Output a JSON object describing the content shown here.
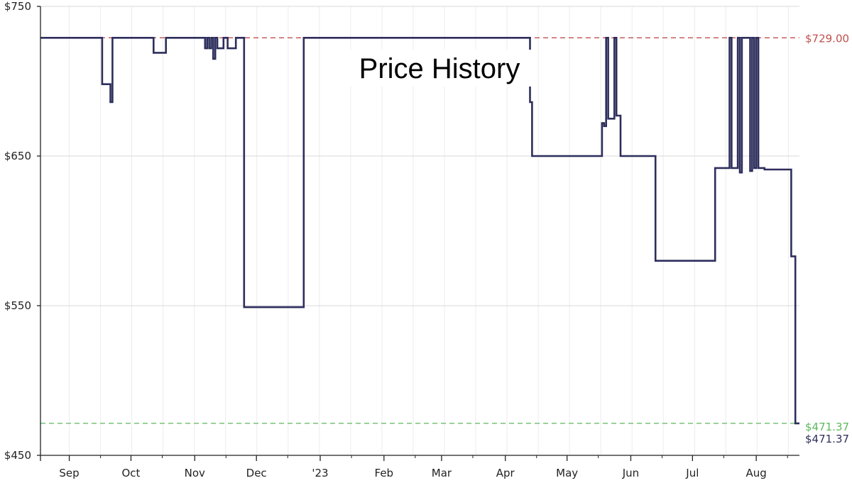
{
  "chart_data": {
    "type": "line",
    "title": "Price History",
    "xlabel": "",
    "ylabel": "",
    "ylim": [
      450,
      750
    ],
    "y_ticks": [
      "$450",
      "$550",
      "$650",
      "$750"
    ],
    "y_tick_values": [
      450,
      550,
      650,
      750
    ],
    "x_start": "2022-08-18",
    "x_end": "2023-08-22",
    "x_tick_labels": [
      "Sep",
      "Oct",
      "Nov",
      "Dec",
      "'23",
      "Feb",
      "Mar",
      "Apr",
      "May",
      "Jun",
      "Jul",
      "Aug"
    ],
    "x_tick_dates": [
      "2022-09-01",
      "2022-10-01",
      "2022-11-01",
      "2022-12-01",
      "2023-01-01",
      "2023-02-01",
      "2023-03-01",
      "2023-04-01",
      "2023-05-01",
      "2023-06-01",
      "2023-07-01",
      "2023-08-01"
    ],
    "grid": true,
    "highest_price": {
      "label": "$729.00",
      "value": 729.0,
      "color": "#c0504d"
    },
    "lowest_price": {
      "label": "$471.37",
      "value": 471.37,
      "color": "#5cb85c"
    },
    "current_price": {
      "label": "$471.37",
      "value": 471.37,
      "color": "#2d2e5c"
    },
    "series": [
      {
        "color": "#2d2e5c",
        "step": true,
        "points": [
          [
            "2022-08-18",
            729
          ],
          [
            "2022-09-17",
            729
          ],
          [
            "2022-09-17",
            698
          ],
          [
            "2022-09-21",
            698
          ],
          [
            "2022-09-21",
            686
          ],
          [
            "2022-09-22",
            686
          ],
          [
            "2022-09-22",
            729
          ],
          [
            "2022-10-12",
            729
          ],
          [
            "2022-10-12",
            719
          ],
          [
            "2022-10-18",
            719
          ],
          [
            "2022-10-18",
            729
          ],
          [
            "2022-11-06",
            729
          ],
          [
            "2022-11-06",
            722
          ],
          [
            "2022-11-07",
            722
          ],
          [
            "2022-11-07",
            729
          ],
          [
            "2022-11-08",
            729
          ],
          [
            "2022-11-08",
            722
          ],
          [
            "2022-11-09",
            722
          ],
          [
            "2022-11-09",
            729
          ],
          [
            "2022-11-10",
            729
          ],
          [
            "2022-11-10",
            715
          ],
          [
            "2022-11-11",
            715
          ],
          [
            "2022-11-11",
            729
          ],
          [
            "2022-11-12",
            729
          ],
          [
            "2022-11-12",
            722
          ],
          [
            "2022-11-15",
            722
          ],
          [
            "2022-11-15",
            729
          ],
          [
            "2022-11-17",
            729
          ],
          [
            "2022-11-17",
            722
          ],
          [
            "2022-11-21",
            722
          ],
          [
            "2022-11-21",
            729
          ],
          [
            "2022-11-25",
            729
          ],
          [
            "2022-11-25",
            549
          ],
          [
            "2022-12-24",
            549
          ],
          [
            "2022-12-24",
            729
          ],
          [
            "2023-04-13",
            729
          ],
          [
            "2023-04-13",
            686
          ],
          [
            "2023-04-14",
            686
          ],
          [
            "2023-04-14",
            650
          ],
          [
            "2023-05-18",
            650
          ],
          [
            "2023-05-18",
            672
          ],
          [
            "2023-05-19",
            672
          ],
          [
            "2023-05-19",
            670
          ],
          [
            "2023-05-20",
            670
          ],
          [
            "2023-05-20",
            729
          ],
          [
            "2023-05-21",
            729
          ],
          [
            "2023-05-21",
            675
          ],
          [
            "2023-05-24",
            675
          ],
          [
            "2023-05-24",
            729
          ],
          [
            "2023-05-25",
            729
          ],
          [
            "2023-05-25",
            677
          ],
          [
            "2023-05-27",
            677
          ],
          [
            "2023-05-27",
            650
          ],
          [
            "2023-06-13",
            650
          ],
          [
            "2023-06-13",
            580
          ],
          [
            "2023-07-12",
            580
          ],
          [
            "2023-07-12",
            642
          ],
          [
            "2023-07-19",
            642
          ],
          [
            "2023-07-19",
            729
          ],
          [
            "2023-07-20",
            729
          ],
          [
            "2023-07-20",
            642
          ],
          [
            "2023-07-23",
            642
          ],
          [
            "2023-07-23",
            729
          ],
          [
            "2023-07-24",
            729
          ],
          [
            "2023-07-24",
            639
          ],
          [
            "2023-07-25",
            639
          ],
          [
            "2023-07-25",
            729
          ],
          [
            "2023-07-29",
            729
          ],
          [
            "2023-07-29",
            640
          ],
          [
            "2023-07-30",
            640
          ],
          [
            "2023-07-30",
            729
          ],
          [
            "2023-07-31",
            729
          ],
          [
            "2023-07-31",
            642
          ],
          [
            "2023-08-01",
            642
          ],
          [
            "2023-08-01",
            729
          ],
          [
            "2023-08-02",
            729
          ],
          [
            "2023-08-02",
            642
          ],
          [
            "2023-08-05",
            642
          ],
          [
            "2023-08-05",
            641
          ],
          [
            "2023-08-18",
            641
          ],
          [
            "2023-08-18",
            583
          ],
          [
            "2023-08-20",
            583
          ],
          [
            "2023-08-20",
            471.37
          ],
          [
            "2023-08-22",
            471.37
          ]
        ]
      }
    ]
  }
}
